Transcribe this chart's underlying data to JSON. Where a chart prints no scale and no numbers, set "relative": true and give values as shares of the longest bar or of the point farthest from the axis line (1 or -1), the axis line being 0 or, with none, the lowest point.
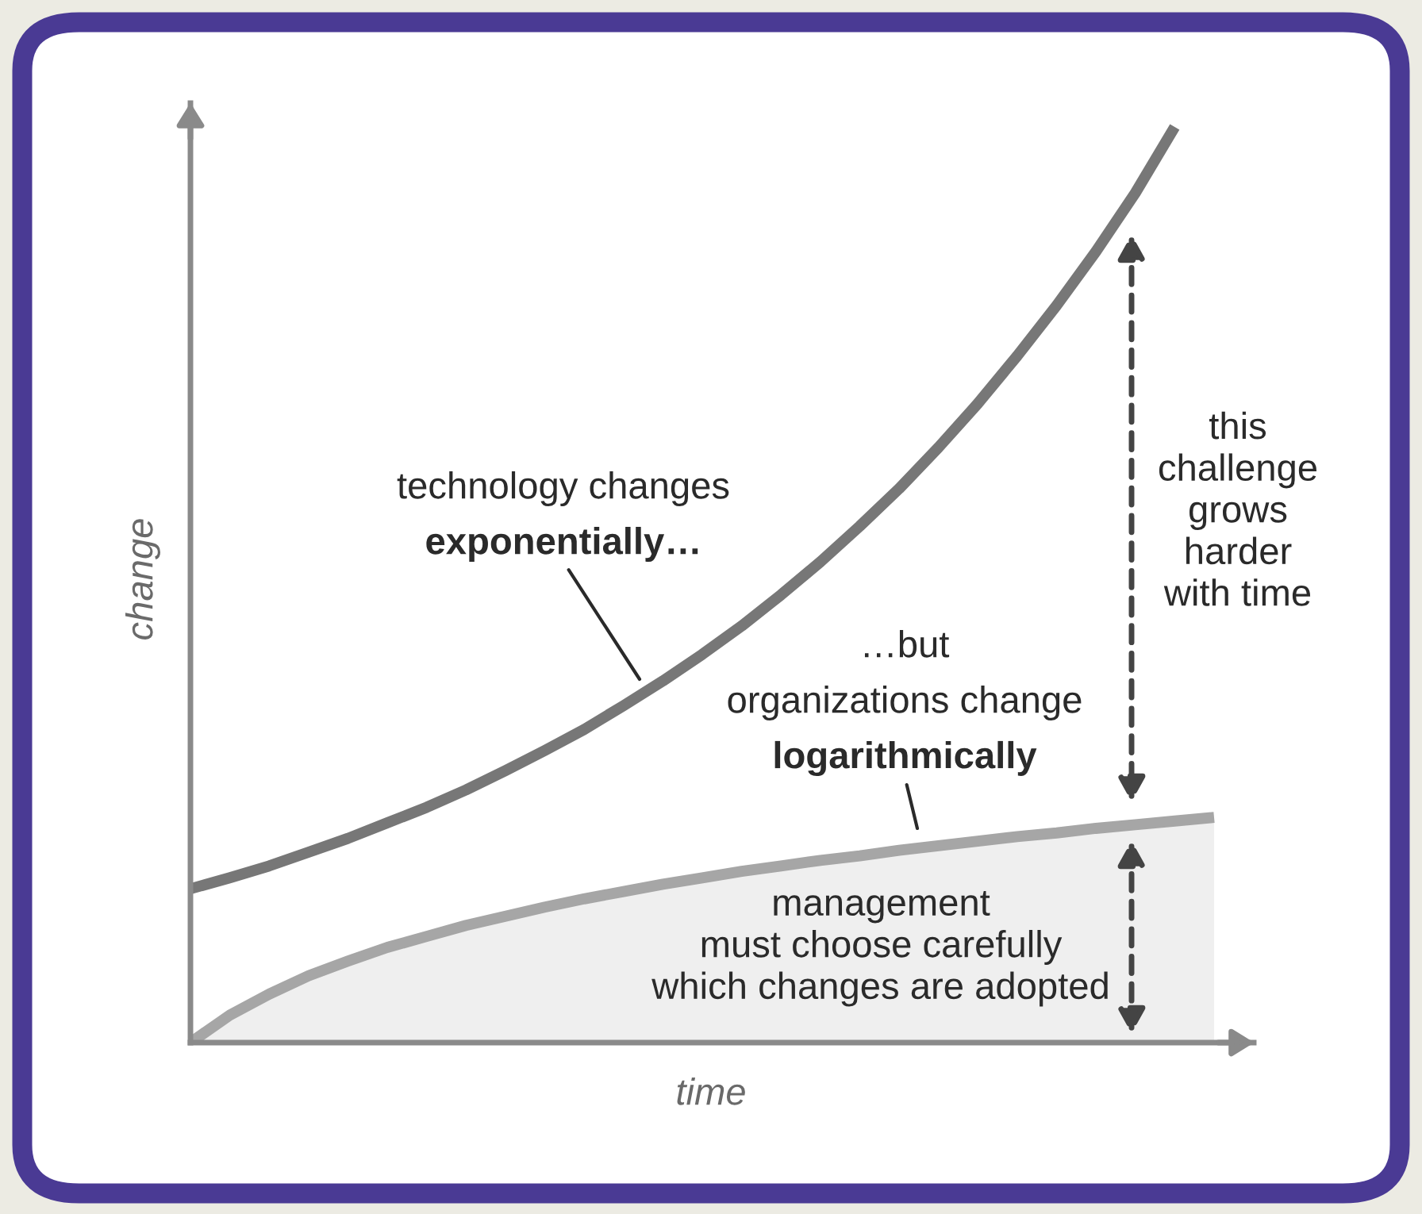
{
  "chart_data": {
    "type": "line",
    "relative": true,
    "xlabel": "time",
    "ylabel": "change",
    "categories": [
      null,
      null,
      null,
      null,
      null,
      null,
      null,
      null,
      null,
      null,
      null,
      null,
      null,
      null,
      null,
      null,
      null,
      null,
      null,
      null,
      null,
      null,
      null,
      null,
      null,
      null,
      null
    ],
    "series": [
      {
        "color": "#777777",
        "values": [
          0.168,
          0.18,
          0.193,
          0.208,
          0.223,
          0.24,
          0.257,
          0.276,
          0.297,
          0.319,
          0.342,
          0.368,
          0.395,
          0.424,
          0.455,
          0.489,
          0.525,
          0.564,
          0.605,
          0.65,
          0.698,
          0.75,
          0.805,
          0.864,
          0.928,
          1.0,
          null
        ]
      },
      {
        "type": "area",
        "color": "#a6a6a6",
        "values": [
          0,
          0.03,
          0.053,
          0.073,
          0.089,
          0.104,
          0.116,
          0.128,
          0.138,
          0.148,
          0.157,
          0.165,
          0.173,
          0.18,
          0.187,
          0.193,
          0.199,
          0.204,
          0.21,
          0.215,
          0.22,
          0.225,
          0.229,
          0.234,
          0.238,
          0.242,
          0.246
        ]
      }
    ],
    "annotations": [
      "technology changes",
      "exponentially…",
      "…but",
      "organizations change",
      "logarithmically",
      "this\nchallenge\ngrows\nharder\nwith time",
      "management\nmust choose carefully\nwhich changes are adopted"
    ],
    "legend": false
  }
}
